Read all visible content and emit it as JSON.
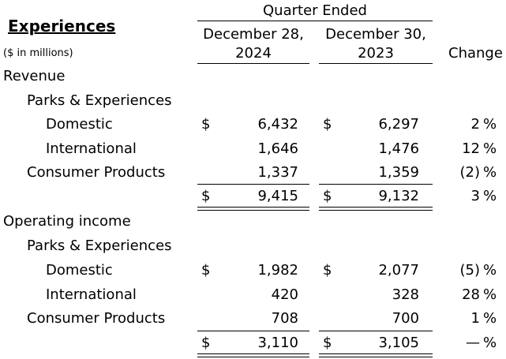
{
  "header": {
    "section_title": "Experiences",
    "units_note": "($ in millions)",
    "period_group": "Quarter Ended",
    "col1_line1": "December 28,",
    "col1_line2": "2024",
    "col2_line1": "December 30,",
    "col2_line2": "2023",
    "change_label": "Change"
  },
  "currency_symbol": "$",
  "revenue": {
    "label": "Revenue",
    "group_label": "Parks & Experiences",
    "domestic": {
      "label": "Domestic",
      "v2024": "6,432",
      "v2023": "6,297",
      "change_val": "2",
      "change_pct": "%"
    },
    "international": {
      "label": "International",
      "v2024": "1,646",
      "v2023": "1,476",
      "change_val": "12",
      "change_pct": "%"
    },
    "consumer_products": {
      "label": "Consumer Products",
      "v2024": "1,337",
      "v2023": "1,359",
      "change_val": "(2)",
      "change_pct": "%"
    },
    "total": {
      "v2024": "9,415",
      "v2023": "9,132",
      "change_val": "3",
      "change_pct": "%"
    }
  },
  "operating_income": {
    "label": "Operating income",
    "group_label": "Parks & Experiences",
    "domestic": {
      "label": "Domestic",
      "v2024": "1,982",
      "v2023": "2,077",
      "change_val": "(5)",
      "change_pct": "%"
    },
    "international": {
      "label": "International",
      "v2024": "420",
      "v2023": "328",
      "change_val": "28",
      "change_pct": "%"
    },
    "consumer_products": {
      "label": "Consumer Products",
      "v2024": "708",
      "v2023": "700",
      "change_val": "1",
      "change_pct": "%"
    },
    "total": {
      "v2024": "3,110",
      "v2023": "3,105",
      "change_val": "—",
      "change_pct": "%"
    }
  }
}
